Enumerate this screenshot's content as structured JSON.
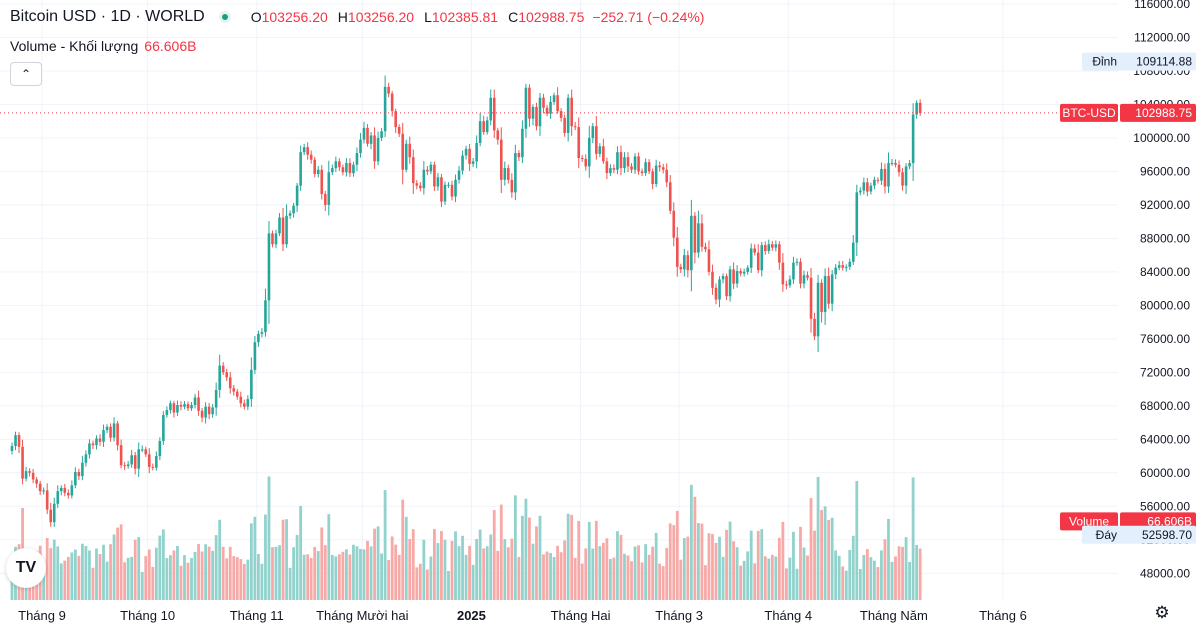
{
  "legend": {
    "title": "Bitcoin USD · 1D · WORLD",
    "open_label": "O",
    "open": "103256.20",
    "high_label": "H",
    "high": "103256.20",
    "low_label": "L",
    "low": "102385.81",
    "close_label": "C",
    "close": "102988.75",
    "change": "−252.71 (−0.24%)",
    "volume_label": "Volume - Khối lượng",
    "volume_value": "66.606B"
  },
  "colors": {
    "up": "#26a69a",
    "down": "#ef5350",
    "vol_up": "#92d2cc",
    "vol_down": "#f7a9a7",
    "price_tag": "#f23645",
    "grid": "#f0f3fa"
  },
  "icons": {
    "logo": "tradingview-logo-icon",
    "collapse": "chevron-up-icon",
    "settings": "gear-icon"
  },
  "chart_data": {
    "type": "candlestick",
    "y_ticks": [
      "48000.00",
      "52000.00",
      "56000.00",
      "60000.00",
      "64000.00",
      "68000.00",
      "72000.00",
      "76000.00",
      "80000.00",
      "84000.00",
      "88000.00",
      "92000.00",
      "96000.00",
      "100000.00",
      "104000.00",
      "108000.00",
      "112000.00",
      "116000.00"
    ],
    "y_range": [
      46000,
      116000
    ],
    "x_labels": [
      {
        "label": "Tháng 9",
        "day": 0,
        "bold": false
      },
      {
        "label": "Tháng 10",
        "day": 30,
        "bold": false
      },
      {
        "label": "Tháng 11",
        "day": 61,
        "bold": false
      },
      {
        "label": "Tháng Mười hai",
        "day": 91,
        "bold": false
      },
      {
        "label": "2025",
        "day": 122,
        "bold": true
      },
      {
        "label": "Tháng Hai",
        "day": 153,
        "bold": false
      },
      {
        "label": "Tháng 3",
        "day": 181,
        "bold": false
      },
      {
        "label": "Tháng 4",
        "day": 212,
        "bold": false
      },
      {
        "label": "Tháng Năm",
        "day": 242,
        "bold": false
      },
      {
        "label": "Tháng 6",
        "day": 273,
        "bold": false
      }
    ],
    "price_tags": [
      {
        "label": "Đỉnh",
        "value": "109114.88",
        "at": 109114.88,
        "kind": "plain"
      },
      {
        "label": "BTC-USD",
        "value": "102988.75",
        "at": 102988.75,
        "kind": "red"
      },
      {
        "label": "Volume",
        "value": "66.606B",
        "at": 54200,
        "kind": "red"
      },
      {
        "label": "Đáy",
        "value": "52598.70",
        "at": 52598.7,
        "kind": "plain"
      }
    ],
    "last_close": 102988.75,
    "closes": [
      63200,
      64500,
      63100,
      59300,
      60200,
      60000,
      59200,
      58700,
      57800,
      57900,
      55600,
      54100,
      56300,
      57800,
      58200,
      57600,
      57300,
      58500,
      60100,
      59600,
      61200,
      62200,
      63500,
      63300,
      64100,
      63700,
      65100,
      65500,
      64200,
      65900,
      63300,
      60900,
      60800,
      61000,
      62100,
      60500,
      62800,
      62800,
      62200,
      60700,
      60600,
      62000,
      63800,
      66900,
      67500,
      68300,
      67200,
      68100,
      67900,
      68200,
      67700,
      68100,
      69000,
      67400,
      66600,
      67900,
      67000,
      67800,
      69900,
      72800,
      72000,
      71400,
      70100,
      69700,
      69100,
      68300,
      67900,
      68800,
      72300,
      75600,
      76600,
      76800,
      80600,
      88600,
      87300,
      88600,
      90500,
      87300,
      90700,
      91000,
      91900,
      94300,
      98300,
      98900,
      98000,
      97400,
      95700,
      96200,
      93300,
      92000,
      95900,
      96400,
      97200,
      96500,
      95900,
      97000,
      95800,
      96800,
      98200,
      99800,
      101200,
      99300,
      100300,
      97200,
      100000,
      100800,
      106100,
      105300,
      103200,
      101300,
      100500,
      96200,
      99300,
      97700,
      94600,
      94300,
      94000,
      96200,
      96000,
      96800,
      94200,
      95300,
      92400,
      94400,
      94400,
      93000,
      95000,
      96100,
      97900,
      98700,
      96900,
      97200,
      99400,
      102000,
      100700,
      102100,
      104800,
      100900,
      99800,
      95000,
      96400,
      95000,
      93500,
      98200,
      97700,
      101100,
      106000,
      102300,
      103700,
      101400,
      104800,
      103600,
      102900,
      104300,
      105100,
      103200,
      102400,
      100600,
      104800,
      101400,
      101300,
      97600,
      97500,
      96600,
      100000,
      101400,
      98100,
      99000,
      97200,
      95800,
      96400,
      96200,
      98300,
      96400,
      97700,
      96600,
      96200,
      97800,
      96000,
      95800,
      97100,
      96000,
      94500,
      96700,
      96500,
      96200,
      94700,
      91300,
      88100,
      84600,
      84300,
      86000,
      84200,
      90700,
      86300,
      89800,
      87000,
      86700,
      84000,
      82100,
      80700,
      83100,
      83500,
      81100,
      84300,
      82600,
      84100,
      83800,
      84000,
      84500,
      86800,
      86300,
      84200,
      87200,
      86500,
      87300,
      86900,
      87300,
      85100,
      82500,
      82400,
      83100,
      85100,
      85200,
      82600,
      83600,
      83300,
      78400,
      76300,
      82700,
      79200,
      83500,
      80200,
      83700,
      84500,
      84800,
      84500,
      84600,
      85200,
      87500,
      93500,
      93700,
      94700,
      93600,
      94300,
      95000,
      94900,
      96300,
      94200,
      97000,
      97000,
      96800,
      95900,
      94300,
      96600,
      97000,
      102800,
      104200,
      102988.75
    ],
    "volume_billion_scale": [
      0,
      120
    ]
  }
}
